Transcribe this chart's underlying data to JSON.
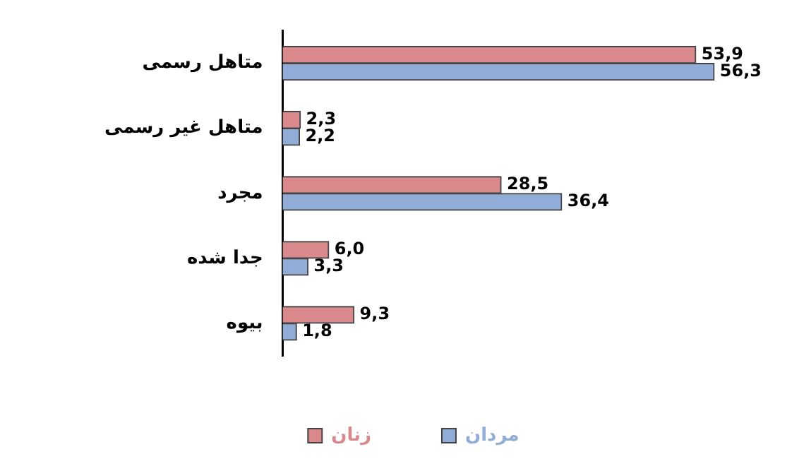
{
  "chart_data": {
    "type": "bar",
    "orientation": "horizontal",
    "categories": [
      "متاهل رسمی",
      "متاهل غیر رسمی",
      "مجرد",
      "جدا شده",
      "بیوه"
    ],
    "series": [
      {
        "name": "زنان",
        "color": "#d9888c",
        "values": [
          53.9,
          2.3,
          28.5,
          6.0,
          9.3
        ],
        "value_labels": [
          "53,9",
          "2,3",
          "28,5",
          "6,0",
          "9,3"
        ]
      },
      {
        "name": "مردان",
        "color": "#92acd8",
        "values": [
          56.3,
          2.2,
          36.4,
          3.3,
          1.8
        ],
        "value_labels": [
          "56,3",
          "2,2",
          "36,4",
          "3,3",
          "1,8"
        ]
      }
    ],
    "tick_labels": "y",
    "legend": "bottom"
  }
}
